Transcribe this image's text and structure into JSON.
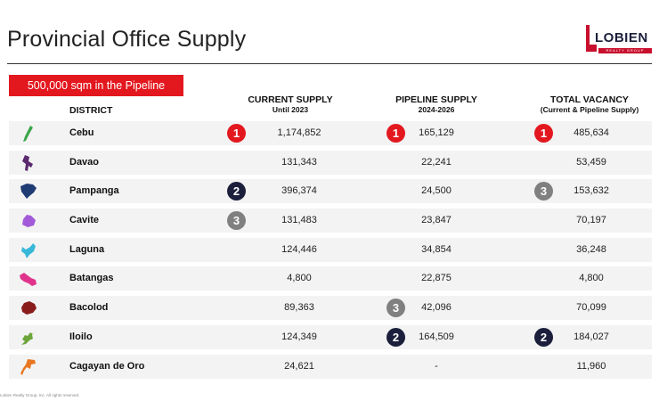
{
  "title": "Provincial Office Supply",
  "logo": {
    "text": "LOBIEN",
    "subtext": "REALTY GROUP"
  },
  "badge": "500,000 sqm in the Pipeline",
  "headers": {
    "district": "DISTRICT",
    "current": {
      "main": "CURRENT SUPPLY",
      "sub": "Until 2023"
    },
    "pipeline": {
      "main": "PIPELINE SUPPLY",
      "sub": "2024-2026"
    },
    "vacancy": {
      "main": "TOTAL VACANCY",
      "sub": "(Current & Pipeline Supply)"
    }
  },
  "rows": [
    {
      "district": "Cebu",
      "icon": "cebu-map-icon",
      "color": "#3aa64a",
      "current": "1,174,852",
      "current_rank": "1",
      "pipeline": "165,129",
      "pipeline_rank": "1",
      "vacancy": "485,634",
      "vacancy_rank": "1"
    },
    {
      "district": "Davao",
      "icon": "davao-map-icon",
      "color": "#5b2a6e",
      "current": "131,343",
      "current_rank": "",
      "pipeline": "22,241",
      "pipeline_rank": "",
      "vacancy": "53,459",
      "vacancy_rank": ""
    },
    {
      "district": "Pampanga",
      "icon": "pampanga-map-icon",
      "color": "#1f3b73",
      "current": "396,374",
      "current_rank": "2",
      "pipeline": "24,500",
      "pipeline_rank": "",
      "vacancy": "153,632",
      "vacancy_rank": "3"
    },
    {
      "district": "Cavite",
      "icon": "cavite-map-icon",
      "color": "#a25ad8",
      "current": "131,483",
      "current_rank": "3",
      "pipeline": "23,847",
      "pipeline_rank": "",
      "vacancy": "70,197",
      "vacancy_rank": ""
    },
    {
      "district": "Laguna",
      "icon": "laguna-map-icon",
      "color": "#38b8d8",
      "current": "124,446",
      "current_rank": "",
      "pipeline": "34,854",
      "pipeline_rank": "",
      "vacancy": "36,248",
      "vacancy_rank": ""
    },
    {
      "district": "Batangas",
      "icon": "batangas-map-icon",
      "color": "#e0348c",
      "current": "4,800",
      "current_rank": "",
      "pipeline": "22,875",
      "pipeline_rank": "",
      "vacancy": "4,800",
      "vacancy_rank": ""
    },
    {
      "district": "Bacolod",
      "icon": "bacolod-map-icon",
      "color": "#8a1c1c",
      "current": "89,363",
      "current_rank": "",
      "pipeline": "42,096",
      "pipeline_rank": "3",
      "vacancy": "70,099",
      "vacancy_rank": ""
    },
    {
      "district": "Iloilo",
      "icon": "iloilo-map-icon",
      "color": "#6da53a",
      "current": "124,349",
      "current_rank": "",
      "pipeline": "164,509",
      "pipeline_rank": "2",
      "vacancy": "184,027",
      "vacancy_rank": "2"
    },
    {
      "district": "Cagayan de Oro",
      "icon": "cagayan-de-oro-map-icon",
      "color": "#e87722",
      "current": "24,621",
      "current_rank": "",
      "pipeline": "-",
      "pipeline_rank": "",
      "vacancy": "11,960",
      "vacancy_rank": ""
    }
  ],
  "footer": "Lobien Realty Group, Inc. All rights reserved."
}
